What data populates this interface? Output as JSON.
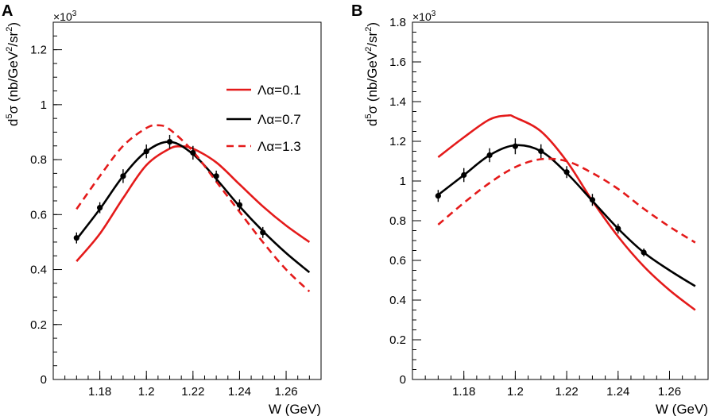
{
  "chart_data": [
    {
      "panel": "A",
      "type": "line",
      "xlabel": "W (GeV)",
      "ylabel": "d5σ (nb/GeV2/sr2)",
      "ylabel_parts": {
        "d": "d",
        "d_sup": "5",
        "sigma": "σ (nb/GeV",
        "gev_sup": "2",
        "sr": "/sr",
        "sr_sup": "2",
        "close": ")"
      },
      "y_multiplier": {
        "base": "×10",
        "exp": "3"
      },
      "xlim": [
        1.16,
        1.275
      ],
      "ylim": [
        0,
        1.3
      ],
      "x_ticks": [
        1.18,
        1.2,
        1.22,
        1.24,
        1.26
      ],
      "x_tick_labels": [
        "1.18",
        "1.2",
        "1.22",
        "1.24",
        "1.26"
      ],
      "y_ticks": [
        0,
        0.2,
        0.4,
        0.6,
        0.8,
        1.0,
        1.2
      ],
      "y_tick_labels": [
        "0",
        "0.2",
        "0.4",
        "0.6",
        "0.8",
        "1",
        "1.2"
      ],
      "legend": {
        "placement": "top-right",
        "entries": [
          {
            "label": "Λα=0.1",
            "color": "#e41a1a",
            "style": "solid"
          },
          {
            "label": "Λα=0.7",
            "color": "#000000",
            "style": "solid"
          },
          {
            "label": "Λα=1.3",
            "color": "#e41a1a",
            "style": "dashed"
          }
        ]
      },
      "series": [
        {
          "name": "Λα=0.1",
          "color": "#e41a1a",
          "style": "solid",
          "x": [
            1.17,
            1.18,
            1.19,
            1.2,
            1.21,
            1.215,
            1.22,
            1.23,
            1.24,
            1.25,
            1.26,
            1.27
          ],
          "y": [
            0.43,
            0.53,
            0.66,
            0.78,
            0.84,
            0.848,
            0.84,
            0.79,
            0.71,
            0.63,
            0.56,
            0.5
          ]
        },
        {
          "name": "Λα=0.7",
          "color": "#000000",
          "style": "solid",
          "x": [
            1.17,
            1.18,
            1.19,
            1.2,
            1.21,
            1.22,
            1.23,
            1.24,
            1.25,
            1.26,
            1.27
          ],
          "y": [
            0.51,
            0.62,
            0.74,
            0.83,
            0.865,
            0.82,
            0.73,
            0.63,
            0.54,
            0.46,
            0.39
          ]
        },
        {
          "name": "Λα=1.3",
          "color": "#e41a1a",
          "style": "dashed",
          "x": [
            1.17,
            1.18,
            1.19,
            1.2,
            1.205,
            1.21,
            1.22,
            1.23,
            1.24,
            1.25,
            1.26,
            1.27
          ],
          "y": [
            0.62,
            0.74,
            0.85,
            0.915,
            0.925,
            0.91,
            0.83,
            0.72,
            0.61,
            0.5,
            0.4,
            0.32
          ]
        }
      ],
      "data_points": {
        "x": [
          1.17,
          1.18,
          1.19,
          1.2,
          1.21,
          1.22,
          1.23,
          1.24,
          1.25
        ],
        "y": [
          0.515,
          0.625,
          0.74,
          0.83,
          0.865,
          0.825,
          0.74,
          0.635,
          0.535
        ],
        "err": [
          0.02,
          0.02,
          0.025,
          0.025,
          0.025,
          0.025,
          0.02,
          0.02,
          0.02
        ]
      }
    },
    {
      "panel": "B",
      "type": "line",
      "xlabel": "W (GeV)",
      "ylabel": "d5σ (nb/GeV2/sr2)",
      "ylabel_parts": {
        "d": "d",
        "d_sup": "5",
        "sigma": "σ (nb/GeV",
        "gev_sup": "2",
        "sr": "/sr",
        "sr_sup": "2",
        "close": ")"
      },
      "y_multiplier": {
        "base": "×10",
        "exp": "3"
      },
      "xlim": [
        1.16,
        1.275
      ],
      "ylim": [
        0,
        1.8
      ],
      "x_ticks": [
        1.18,
        1.2,
        1.22,
        1.24,
        1.26
      ],
      "x_tick_labels": [
        "1.18",
        "1.2",
        "1.22",
        "1.24",
        "1.26"
      ],
      "y_ticks": [
        0,
        0.2,
        0.4,
        0.6,
        0.8,
        1.0,
        1.2,
        1.4,
        1.6,
        1.8
      ],
      "y_tick_labels": [
        "0",
        "0.2",
        "0.4",
        "0.6",
        "0.8",
        "1",
        "1.2",
        "1.4",
        "1.6",
        "1.8"
      ],
      "series": [
        {
          "name": "Λα=0.1",
          "color": "#e41a1a",
          "style": "solid",
          "x": [
            1.17,
            1.18,
            1.19,
            1.197,
            1.2,
            1.21,
            1.22,
            1.23,
            1.24,
            1.25,
            1.26,
            1.27
          ],
          "y": [
            1.12,
            1.22,
            1.31,
            1.33,
            1.32,
            1.25,
            1.1,
            0.9,
            0.72,
            0.57,
            0.45,
            0.35
          ]
        },
        {
          "name": "Λα=0.7",
          "color": "#000000",
          "style": "solid",
          "x": [
            1.17,
            1.18,
            1.19,
            1.2,
            1.21,
            1.22,
            1.23,
            1.24,
            1.25,
            1.26,
            1.27
          ],
          "y": [
            0.93,
            1.03,
            1.13,
            1.18,
            1.15,
            1.04,
            0.9,
            0.76,
            0.64,
            0.55,
            0.47
          ]
        },
        {
          "name": "Λα=1.3",
          "color": "#e41a1a",
          "style": "dashed",
          "x": [
            1.17,
            1.18,
            1.19,
            1.2,
            1.21,
            1.22,
            1.23,
            1.24,
            1.25,
            1.26,
            1.27
          ],
          "y": [
            0.78,
            0.89,
            0.99,
            1.07,
            1.11,
            1.1,
            1.04,
            0.96,
            0.86,
            0.77,
            0.69
          ]
        }
      ],
      "data_points": {
        "x": [
          1.17,
          1.18,
          1.19,
          1.2,
          1.21,
          1.22,
          1.23,
          1.24,
          1.25
        ],
        "y": [
          0.925,
          1.03,
          1.13,
          1.175,
          1.15,
          1.045,
          0.905,
          0.76,
          0.64
        ],
        "err": [
          0.03,
          0.035,
          0.035,
          0.04,
          0.035,
          0.03,
          0.03,
          0.025,
          0.02
        ]
      }
    }
  ]
}
